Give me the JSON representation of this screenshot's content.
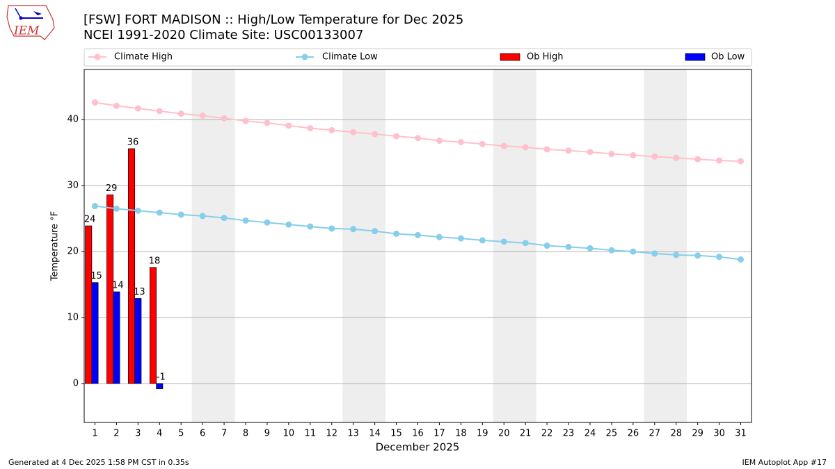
{
  "chart_data": {
    "type": "bar-line",
    "title": "[FSW] FORT MADISON :: High/Low Temperature for Dec 2025",
    "subtitle": "NCEI 1991-2020 Climate Site: USC00133007",
    "logo_text": "IEM",
    "x_label": "December 2025",
    "y_label": "Temperature °F",
    "footer_left": "Generated at 4 Dec 2025 1:58 PM CST in 0.35s",
    "footer_right": "IEM Autoplot App #17",
    "x": [
      1,
      2,
      3,
      4,
      5,
      6,
      7,
      8,
      9,
      10,
      11,
      12,
      13,
      14,
      15,
      16,
      17,
      18,
      19,
      20,
      21,
      22,
      23,
      24,
      25,
      26,
      27,
      28,
      29,
      30,
      31
    ],
    "xlim": [
      0.5,
      31.5
    ],
    "ylim": [
      -5.9,
      47.6
    ],
    "yticks": [
      0,
      10,
      20,
      30,
      40
    ],
    "grid": true,
    "shaded_days": [
      [
        6,
        7
      ],
      [
        13,
        14
      ],
      [
        20,
        21
      ],
      [
        27,
        28
      ]
    ],
    "series": [
      {
        "name": "Climate High",
        "kind": "line",
        "color": "#ffc0cb",
        "values": [
          42.6,
          42.1,
          41.7,
          41.3,
          40.9,
          40.6,
          40.2,
          39.8,
          39.5,
          39.1,
          38.7,
          38.4,
          38.1,
          37.8,
          37.5,
          37.2,
          36.8,
          36.6,
          36.3,
          36.0,
          35.8,
          35.5,
          35.3,
          35.1,
          34.8,
          34.6,
          34.4,
          34.2,
          34.0,
          33.8,
          33.7
        ]
      },
      {
        "name": "Climate Low",
        "kind": "line",
        "color": "#87ceeb",
        "values": [
          26.9,
          26.5,
          26.2,
          25.9,
          25.6,
          25.4,
          25.1,
          24.7,
          24.4,
          24.1,
          23.8,
          23.5,
          23.4,
          23.1,
          22.7,
          22.5,
          22.2,
          22.0,
          21.7,
          21.5,
          21.3,
          20.9,
          20.7,
          20.5,
          20.2,
          20.0,
          19.7,
          19.5,
          19.4,
          19.2,
          18.8
        ]
      },
      {
        "name": "Ob High",
        "kind": "bar",
        "color": "#ff0000",
        "values": [
          23.9,
          28.6,
          35.6,
          17.6,
          null,
          null,
          null,
          null,
          null,
          null,
          null,
          null,
          null,
          null,
          null,
          null,
          null,
          null,
          null,
          null,
          null,
          null,
          null,
          null,
          null,
          null,
          null,
          null,
          null,
          null,
          null
        ],
        "value_labels": [
          "24",
          "29",
          "36",
          "18",
          null,
          null,
          null,
          null,
          null,
          null,
          null,
          null,
          null,
          null,
          null,
          null,
          null,
          null,
          null,
          null,
          null,
          null,
          null,
          null,
          null,
          null,
          null,
          null,
          null,
          null,
          null
        ]
      },
      {
        "name": "Ob Low",
        "kind": "bar",
        "color": "#0000ff",
        "values": [
          15.3,
          13.9,
          12.9,
          -0.8,
          null,
          null,
          null,
          null,
          null,
          null,
          null,
          null,
          null,
          null,
          null,
          null,
          null,
          null,
          null,
          null,
          null,
          null,
          null,
          null,
          null,
          null,
          null,
          null,
          null,
          null,
          null
        ],
        "value_labels": [
          "15",
          "14",
          "13",
          "-1",
          null,
          null,
          null,
          null,
          null,
          null,
          null,
          null,
          null,
          null,
          null,
          null,
          null,
          null,
          null,
          null,
          null,
          null,
          null,
          null,
          null,
          null,
          null,
          null,
          null,
          null,
          null
        ]
      }
    ]
  }
}
